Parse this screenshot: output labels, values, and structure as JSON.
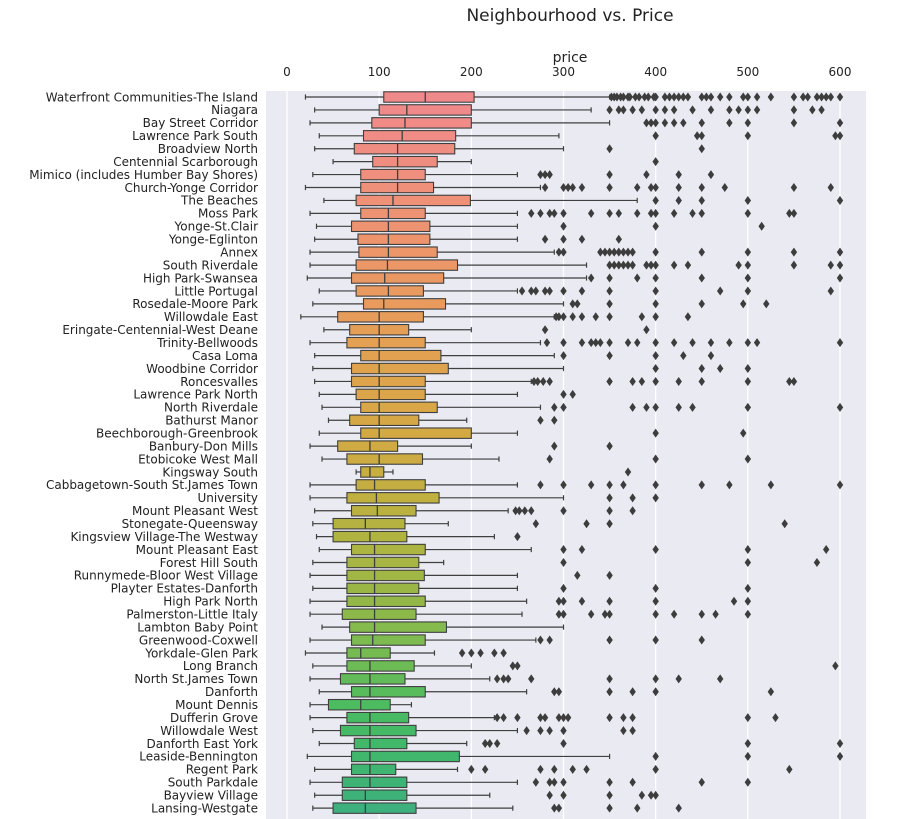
{
  "chart_data": {
    "type": "box",
    "title": "Neighbourhood vs. Price",
    "xlabel": "price",
    "ylabel": "",
    "xlim": [
      -10,
      630
    ],
    "xticks": [
      0,
      100,
      200,
      300,
      400,
      500,
      600
    ],
    "xtick_labels": [
      "0",
      "100",
      "200",
      "300",
      "400",
      "500",
      "600"
    ],
    "grid": true,
    "orientation": "horizontal",
    "colors": {
      "background": "#EAEAF2",
      "grid": "#FFFFFF",
      "line": "#3f3f3f",
      "flier": "#3d3d3d"
    },
    "categories": [
      {
        "name": "Waterfront Communities-The Island",
        "whislo": 20,
        "q1": 105,
        "median": 150,
        "q3": 203,
        "whishi": 350,
        "color": "#F08A8A",
        "fliers": [
          352,
          355,
          358,
          362,
          365,
          370,
          372,
          378,
          382,
          388,
          392,
          398,
          400,
          410,
          415,
          420,
          425,
          430,
          435,
          450,
          455,
          460,
          470,
          480,
          495,
          500,
          510,
          525,
          550,
          560,
          565,
          575,
          580,
          585,
          590,
          600
        ]
      },
      {
        "name": "Niagara",
        "whislo": 30,
        "q1": 100,
        "median": 130,
        "q3": 200,
        "whishi": 330,
        "color": "#F08A8A",
        "fliers": [
          350,
          360,
          365,
          375,
          385,
          400,
          410,
          420,
          440,
          460,
          480,
          490,
          500,
          510,
          550,
          570,
          580
        ]
      },
      {
        "name": "Bay Street Corridor",
        "whislo": 25,
        "q1": 92,
        "median": 128,
        "q3": 200,
        "whishi": 350,
        "color": "#F08B87",
        "fliers": [
          390,
          395,
          400,
          410,
          420,
          430,
          450,
          480,
          500,
          550,
          600
        ]
      },
      {
        "name": "Lawrence Park South",
        "whislo": 35,
        "q1": 83,
        "median": 125,
        "q3": 183,
        "whishi": 295,
        "color": "#F08C85",
        "fliers": [
          400,
          445,
          450,
          500,
          595,
          600
        ]
      },
      {
        "name": "Broadview North",
        "whislo": 30,
        "q1": 73,
        "median": 120,
        "q3": 182,
        "whishi": 300,
        "color": "#F08D82",
        "fliers": [
          350,
          450
        ]
      },
      {
        "name": "Centennial Scarborough",
        "whislo": 50,
        "q1": 93,
        "median": 120,
        "q3": 163,
        "whishi": 200,
        "color": "#EF8E80",
        "fliers": [
          400
        ]
      },
      {
        "name": "Mimico (includes Humber Bay Shores)",
        "whislo": 28,
        "q1": 80,
        "median": 120,
        "q3": 150,
        "whishi": 250,
        "color": "#EF8F7D",
        "fliers": [
          275,
          280,
          285,
          350,
          390,
          425,
          460
        ]
      },
      {
        "name": "Church-Yonge Corridor",
        "whislo": 20,
        "q1": 80,
        "median": 120,
        "q3": 159,
        "whishi": 275,
        "color": "#EF907A",
        "fliers": [
          280,
          300,
          305,
          310,
          320,
          350,
          380,
          395,
          400,
          425,
          450,
          475,
          550,
          590
        ]
      },
      {
        "name": "The Beaches",
        "whislo": 40,
        "q1": 75,
        "median": 115,
        "q3": 199,
        "whishi": 380,
        "color": "#EE9177",
        "fliers": [
          400,
          425,
          450,
          500,
          600
        ]
      },
      {
        "name": "Moss Park",
        "whislo": 25,
        "q1": 80,
        "median": 110,
        "q3": 150,
        "whishi": 250,
        "color": "#EE9274",
        "fliers": [
          265,
          275,
          285,
          290,
          300,
          330,
          350,
          360,
          380,
          395,
          400,
          420,
          440,
          450,
          500,
          545,
          550
        ]
      },
      {
        "name": "Yonge-St.Clair",
        "whislo": 32,
        "q1": 70,
        "median": 110,
        "q3": 155,
        "whishi": 250,
        "color": "#ED9371",
        "fliers": [
          300,
          400,
          515
        ]
      },
      {
        "name": "Yonge-Eglinton",
        "whislo": 30,
        "q1": 77,
        "median": 110,
        "q3": 155,
        "whishi": 250,
        "color": "#ED946D",
        "fliers": [
          280,
          300,
          320,
          360
        ]
      },
      {
        "name": "Annex",
        "whislo": 25,
        "q1": 78,
        "median": 110,
        "q3": 163,
        "whishi": 290,
        "color": "#EC966A",
        "fliers": [
          295,
          300,
          340,
          345,
          350,
          355,
          360,
          365,
          370,
          375,
          400,
          450,
          500,
          550,
          600
        ]
      },
      {
        "name": "South Riverdale",
        "whislo": 25,
        "q1": 75,
        "median": 109,
        "q3": 185,
        "whishi": 325,
        "color": "#EB9767",
        "fliers": [
          350,
          355,
          360,
          365,
          370,
          375,
          390,
          395,
          400,
          420,
          435,
          490,
          500,
          550,
          590,
          600
        ]
      },
      {
        "name": "High Park-Swansea",
        "whislo": 22,
        "q1": 70,
        "median": 106,
        "q3": 170,
        "whishi": 325,
        "color": "#EA9863",
        "fliers": [
          330,
          350,
          380,
          400,
          450,
          500,
          600
        ]
      },
      {
        "name": "Little Portugal",
        "whislo": 35,
        "q1": 75,
        "median": 110,
        "q3": 148,
        "whishi": 250,
        "color": "#E99A60",
        "fliers": [
          255,
          265,
          270,
          280,
          285,
          300,
          320,
          350,
          400,
          470,
          500,
          590
        ]
      },
      {
        "name": "Rosedale-Moore Park",
        "whislo": 28,
        "q1": 83,
        "median": 105,
        "q3": 172,
        "whishi": 300,
        "color": "#E89B5C",
        "fliers": [
          310,
          315,
          350,
          400,
          450,
          495,
          520
        ]
      },
      {
        "name": "Willowdale East",
        "whislo": 15,
        "q1": 55,
        "median": 100,
        "q3": 148,
        "whishi": 290,
        "color": "#E79D59",
        "fliers": [
          292,
          295,
          300,
          310,
          320,
          335,
          350,
          385,
          400,
          435
        ]
      },
      {
        "name": "Eringate-Centennial-West Deane",
        "whislo": 40,
        "q1": 68,
        "median": 100,
        "q3": 132,
        "whishi": 200,
        "color": "#E59E56",
        "fliers": [
          280,
          390
        ]
      },
      {
        "name": "Trinity-Bellwoods",
        "whislo": 25,
        "q1": 65,
        "median": 100,
        "q3": 150,
        "whishi": 275,
        "color": "#E4A053",
        "fliers": [
          282,
          300,
          320,
          330,
          335,
          340,
          350,
          370,
          380,
          400,
          420,
          440,
          460,
          480,
          500,
          510,
          600
        ]
      },
      {
        "name": "Casa Loma",
        "whislo": 30,
        "q1": 80,
        "median": 100,
        "q3": 167,
        "whishi": 290,
        "color": "#E2A150",
        "fliers": [
          300,
          350,
          400,
          430,
          460
        ]
      },
      {
        "name": "Woodbine Corridor",
        "whislo": 28,
        "q1": 70,
        "median": 100,
        "q3": 175,
        "whishi": 300,
        "color": "#E0A34D",
        "fliers": [
          400,
          450,
          470,
          500
        ]
      },
      {
        "name": "Roncesvalles",
        "whislo": 30,
        "q1": 70,
        "median": 100,
        "q3": 150,
        "whishi": 265,
        "color": "#DEA44B",
        "fliers": [
          268,
          272,
          278,
          285,
          350,
          375,
          385,
          400,
          425,
          450,
          500,
          545,
          550
        ]
      },
      {
        "name": "Lawrence Park North",
        "whislo": 35,
        "q1": 75,
        "median": 100,
        "q3": 150,
        "whishi": 250,
        "color": "#DCA549",
        "fliers": [
          300,
          310
        ]
      },
      {
        "name": "North Riverdale",
        "whislo": 38,
        "q1": 80,
        "median": 100,
        "q3": 163,
        "whishi": 275,
        "color": "#D9A747",
        "fliers": [
          290,
          300,
          375,
          390,
          400,
          425,
          440,
          500,
          600
        ]
      },
      {
        "name": "Bathurst Manor",
        "whislo": 45,
        "q1": 68,
        "median": 100,
        "q3": 143,
        "whishi": 195,
        "color": "#D6A845",
        "fliers": [
          275,
          290
        ]
      },
      {
        "name": "Beechborough-Greenbrook",
        "whislo": 35,
        "q1": 80,
        "median": 100,
        "q3": 200,
        "whishi": 250,
        "color": "#D3A944",
        "fliers": [
          400,
          495
        ]
      },
      {
        "name": "Banbury-Don Mills",
        "whislo": 25,
        "q1": 55,
        "median": 90,
        "q3": 120,
        "whishi": 200,
        "color": "#D0AB43",
        "fliers": [
          290,
          350
        ]
      },
      {
        "name": "Etobicoke West Mall",
        "whislo": 38,
        "q1": 65,
        "median": 100,
        "q3": 147,
        "whishi": 230,
        "color": "#CCAC42",
        "fliers": [
          285,
          400,
          500
        ]
      },
      {
        "name": "Kingsway South",
        "whislo": 75,
        "q1": 80,
        "median": 90,
        "q3": 105,
        "whishi": 115,
        "color": "#C8AD41",
        "fliers": [
          370
        ]
      },
      {
        "name": "Cabbagetown-South St.James Town",
        "whislo": 25,
        "q1": 75,
        "median": 95,
        "q3": 150,
        "whishi": 250,
        "color": "#C4AE41",
        "fliers": [
          275,
          300,
          330,
          350,
          365,
          400,
          450,
          480,
          525,
          600
        ]
      },
      {
        "name": "University",
        "whislo": 25,
        "q1": 65,
        "median": 97,
        "q3": 165,
        "whishi": 300,
        "color": "#C0B040",
        "fliers": [
          350,
          375,
          400
        ]
      },
      {
        "name": "Mount Pleasant West",
        "whislo": 30,
        "q1": 70,
        "median": 98,
        "q3": 140,
        "whishi": 240,
        "color": "#BBB140",
        "fliers": [
          248,
          252,
          258,
          265,
          300,
          350,
          375
        ]
      },
      {
        "name": "Stonegate-Queensway",
        "whislo": 28,
        "q1": 50,
        "median": 85,
        "q3": 128,
        "whishi": 175,
        "color": "#B6B241",
        "fliers": [
          270,
          325,
          350,
          540
        ]
      },
      {
        "name": "Kingsview Village-The Westway",
        "whislo": 32,
        "q1": 50,
        "median": 90,
        "q3": 130,
        "whishi": 225,
        "color": "#B1B341",
        "fliers": [
          250
        ]
      },
      {
        "name": "Mount Pleasant East",
        "whislo": 35,
        "q1": 70,
        "median": 95,
        "q3": 150,
        "whishi": 265,
        "color": "#ACB442",
        "fliers": [
          300,
          320,
          400,
          500,
          585
        ]
      },
      {
        "name": "Forest Hill South",
        "whislo": 28,
        "q1": 65,
        "median": 95,
        "q3": 143,
        "whishi": 170,
        "color": "#A6B543",
        "fliers": [
          300,
          500,
          575
        ]
      },
      {
        "name": "Runnymede-Bloor West Village",
        "whislo": 25,
        "q1": 65,
        "median": 95,
        "q3": 149,
        "whishi": 250,
        "color": "#A0B645",
        "fliers": [
          315,
          350
        ]
      },
      {
        "name": "Playter Estates-Danforth",
        "whislo": 28,
        "q1": 65,
        "median": 95,
        "q3": 143,
        "whishi": 250,
        "color": "#9AB746",
        "fliers": [
          300,
          400,
          500
        ]
      },
      {
        "name": "High Park North",
        "whislo": 25,
        "q1": 65,
        "median": 95,
        "q3": 150,
        "whishi": 260,
        "color": "#93B848",
        "fliers": [
          295,
          300,
          320,
          350,
          400,
          485,
          500
        ]
      },
      {
        "name": "Palmerston-Little Italy",
        "whislo": 25,
        "q1": 60,
        "median": 95,
        "q3": 140,
        "whishi": 255,
        "color": "#8CB94A",
        "fliers": [
          295,
          300,
          330,
          345,
          350,
          400,
          420,
          450,
          465,
          500
        ]
      },
      {
        "name": "Lambton Baby Point",
        "whislo": 38,
        "q1": 68,
        "median": 95,
        "q3": 173,
        "whishi": 300,
        "color": "#85BA4D",
        "fliers": []
      },
      {
        "name": "Greenwood-Coxwell",
        "whislo": 25,
        "q1": 70,
        "median": 93,
        "q3": 150,
        "whishi": 270,
        "color": "#7DBA4F",
        "fliers": [
          275,
          285,
          350,
          400,
          450
        ]
      },
      {
        "name": "Yorkdale-Glen Park",
        "whislo": 20,
        "q1": 65,
        "median": 80,
        "q3": 112,
        "whishi": 160,
        "color": "#75BB52",
        "fliers": [
          190,
          200,
          210,
          225,
          235
        ]
      },
      {
        "name": "Long Branch",
        "whislo": 28,
        "q1": 65,
        "median": 90,
        "q3": 138,
        "whishi": 200,
        "color": "#6CBB55",
        "fliers": [
          245,
          250,
          595
        ]
      },
      {
        "name": "North St.James Town",
        "whislo": 25,
        "q1": 58,
        "median": 90,
        "q3": 128,
        "whishi": 220,
        "color": "#62BB58",
        "fliers": [
          228,
          235,
          240,
          265,
          350,
          400,
          425,
          470
        ]
      },
      {
        "name": "Danforth",
        "whislo": 35,
        "q1": 70,
        "median": 90,
        "q3": 150,
        "whishi": 260,
        "color": "#58BB5C",
        "fliers": [
          290,
          295,
          350,
          375,
          400,
          525
        ]
      },
      {
        "name": "Mount Dennis",
        "whislo": 25,
        "q1": 45,
        "median": 80,
        "q3": 112,
        "whishi": 135,
        "color": "#4DBB60",
        "fliers": []
      },
      {
        "name": "Dufferin Grove",
        "whislo": 25,
        "q1": 65,
        "median": 90,
        "q3": 132,
        "whishi": 225,
        "color": "#48BA63",
        "fliers": [
          228,
          235,
          250,
          275,
          280,
          295,
          300,
          305,
          350,
          365,
          375,
          500,
          530
        ]
      },
      {
        "name": "Willowdale West",
        "whislo": 28,
        "q1": 58,
        "median": 90,
        "q3": 140,
        "whishi": 250,
        "color": "#44B966",
        "fliers": [
          260,
          275,
          285,
          300,
          365,
          375
        ]
      },
      {
        "name": "Danforth East York",
        "whislo": 35,
        "q1": 73,
        "median": 90,
        "q3": 130,
        "whishi": 195,
        "color": "#42B86A",
        "fliers": [
          215,
          220,
          228,
          300,
          500,
          600
        ]
      },
      {
        "name": "Leaside-Bennington",
        "whislo": 22,
        "q1": 70,
        "median": 90,
        "q3": 187,
        "whishi": 350,
        "color": "#41B76E",
        "fliers": [
          400,
          500,
          600
        ]
      },
      {
        "name": "Regent Park",
        "whislo": 30,
        "q1": 70,
        "median": 90,
        "q3": 118,
        "whishi": 185,
        "color": "#40B572",
        "fliers": [
          200,
          215,
          275,
          290,
          310,
          325,
          400,
          545
        ]
      },
      {
        "name": "South Parkdale",
        "whislo": 25,
        "q1": 60,
        "median": 90,
        "q3": 130,
        "whishi": 250,
        "color": "#3FB376",
        "fliers": [
          270,
          285,
          290,
          300,
          350,
          375,
          450,
          500
        ]
      },
      {
        "name": "Bayview Village",
        "whislo": 30,
        "q1": 60,
        "median": 85,
        "q3": 130,
        "whishi": 220,
        "color": "#3FB27A",
        "fliers": [
          285,
          300,
          350,
          385,
          395,
          400
        ]
      },
      {
        "name": "Lansing-Westgate",
        "whislo": 28,
        "q1": 50,
        "median": 85,
        "q3": 140,
        "whishi": 245,
        "color": "#3EB07E",
        "fliers": [
          290,
          295,
          350,
          380,
          425
        ]
      }
    ]
  }
}
